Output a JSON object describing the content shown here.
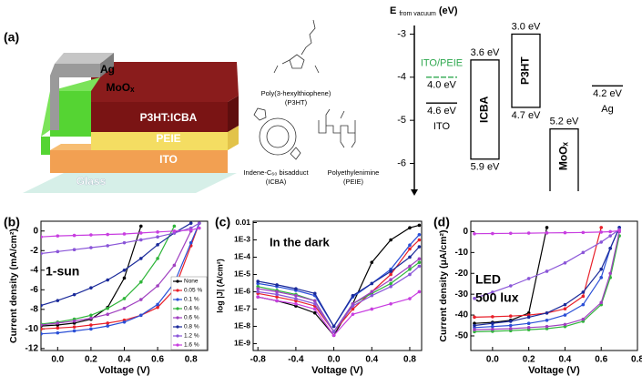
{
  "panel_a": {
    "label": "(a)",
    "layers": [
      "Ag",
      "MoOₓ",
      "P3HT:ICBA",
      "PEIE",
      "ITO",
      "Glass"
    ],
    "molecules": [
      {
        "name": "Poly(3-hexylthiophene)",
        "abbr": "(P3HT)"
      },
      {
        "name": "Indene-C₆₀ bisadduct",
        "abbr": "(ICBA)"
      },
      {
        "name": "Polyethylenimine",
        "abbr": "(PEIE)"
      }
    ]
  },
  "chart_data": [
    {
      "type": "energy",
      "ylabel": "E",
      "ylabel_sub": "from vacuum",
      "ylabel_unit": "(eV)",
      "ylim": [
        -6.75,
        -2.8
      ],
      "yticks": [
        -3,
        -4,
        -5,
        -6
      ],
      "levels": [
        {
          "name": "ITO/PEIE",
          "value": -4.0,
          "value_label": "4.0 eV",
          "color": "#2fa84f"
        },
        {
          "name": "ITO",
          "value": -4.6,
          "value_label": "4.6 eV",
          "color": "#000000"
        },
        {
          "name": "Ag",
          "value": -4.2,
          "value_label": "4.2 eV",
          "color": "#000000"
        }
      ],
      "boxes": [
        {
          "name": "ICBA",
          "top": -3.6,
          "bottom": -5.9,
          "top_label": "3.6 eV",
          "bottom_label": "5.9 eV"
        },
        {
          "name": "P3HT",
          "top": -3.0,
          "bottom": -4.7,
          "top_label": "3.0 eV",
          "bottom_label": "4.7 eV"
        },
        {
          "name": "MoOₓ",
          "top": -5.2,
          "top_label": "5.2 eV"
        }
      ]
    },
    {
      "type": "line",
      "label": "(b)",
      "xlabel": "Voltage (V)",
      "ylabel": "Current density (mA/cm²)",
      "annotation": [
        "1-sun"
      ],
      "xlim": [
        -0.1,
        0.9
      ],
      "ylim": [
        -12.2,
        1
      ],
      "xticks": [
        {
          "value": 0,
          "label": "0.0"
        },
        0.2,
        0.4,
        0.6,
        0.8
      ],
      "yticks": [
        0,
        -2,
        -4,
        -6,
        -8,
        -10,
        -12
      ],
      "x": [
        -0.1,
        0,
        0.1,
        0.2,
        0.3,
        0.4,
        0.5,
        0.6,
        0.7,
        0.8,
        0.85,
        0.9
      ],
      "series": [
        {
          "name": "None",
          "color": "#000000",
          "values": [
            -9.7,
            -9.6,
            -9.4,
            -9.0,
            -7.8,
            -4.8,
            0.5,
            null,
            null,
            null,
            null,
            null
          ]
        },
        {
          "name": "0.05 %",
          "color": "#e8202a",
          "values": [
            -10,
            -9.9,
            -9.8,
            -9.6,
            -9.4,
            -9.1,
            -8.6,
            -7.8,
            -6.0,
            -1.5,
            0.8,
            null
          ]
        },
        {
          "name": "0.1 %",
          "color": "#2a4fd6",
          "values": [
            -10.5,
            -10.4,
            -10.2,
            -10.0,
            -9.7,
            -9.3,
            -8.6,
            -7.5,
            -5.3,
            -1.2,
            0.8,
            null
          ]
        },
        {
          "name": "0.4 %",
          "color": "#2fb53a",
          "values": [
            -9.5,
            -9.3,
            -9.0,
            -8.6,
            -7.9,
            -6.9,
            -5.2,
            -2.8,
            0.5,
            null,
            null,
            null
          ]
        },
        {
          "name": "0.6 %",
          "color": "#a040c0",
          "values": [
            -9.6,
            -9.4,
            -9.2,
            -8.9,
            -8.5,
            -7.9,
            -7.0,
            -5.6,
            -3.5,
            0.0,
            null,
            null
          ]
        },
        {
          "name": "0.8 %",
          "color": "#1a2a9a",
          "values": [
            -7.6,
            -7.1,
            -6.5,
            -5.8,
            -5.0,
            -4.0,
            -2.8,
            -1.4,
            -0.2,
            0.8,
            null,
            null
          ]
        },
        {
          "name": "1.2 %",
          "color": "#8a55d8",
          "values": [
            -2.3,
            -2.1,
            -1.9,
            -1.7,
            -1.5,
            -1.2,
            -0.9,
            -0.6,
            -0.2,
            0.3,
            0.8,
            null
          ]
        },
        {
          "name": "1.6 %",
          "color": "#c83ee0",
          "values": [
            -0.6,
            -0.5,
            -0.45,
            -0.4,
            -0.35,
            -0.3,
            -0.2,
            -0.1,
            0,
            0.1,
            0.3,
            null
          ]
        }
      ]
    },
    {
      "type": "line",
      "label": "(c)",
      "xlabel": "Voltage (V)",
      "ylabel": "log |J| (A/cm²)",
      "annotation": [
        "In the dark"
      ],
      "log_y": true,
      "xlim": [
        -0.85,
        0.925
      ],
      "ylim": [
        4e-10,
        0.012
      ],
      "xticks": [
        -0.8,
        -0.4,
        {
          "value": 0,
          "label": "0.0"
        },
        0.4,
        0.8
      ],
      "yticks": [
        {
          "value": 1e-09,
          "label": "1E-9"
        },
        {
          "value": 1e-08,
          "label": "1E-8"
        },
        {
          "value": 1e-07,
          "label": "1E-7"
        },
        {
          "value": 1e-06,
          "label": "1E-6"
        },
        {
          "value": 1e-05,
          "label": "1E-5"
        },
        {
          "value": 0.0001,
          "label": "1E-4"
        },
        {
          "value": 0.001,
          "label": "1E-3"
        },
        0.01
      ],
      "x": [
        -0.8,
        -0.6,
        -0.4,
        -0.2,
        0,
        0.2,
        0.4,
        0.6,
        0.8,
        0.9
      ],
      "series": [
        {
          "color": "#000000",
          "values": [
            5e-07,
            3e-07,
            1.5e-07,
            6e-08,
            3e-09,
            2e-07,
            5e-05,
            0.001,
            0.005,
            0.007
          ]
        },
        {
          "color": "#e8202a",
          "values": [
            8e-07,
            5e-07,
            3e-07,
            1.5e-07,
            5e-09,
            1e-07,
            1e-06,
            1e-05,
            0.0003,
            0.001
          ]
        },
        {
          "color": "#2a4fd6",
          "values": [
            3e-06,
            2e-06,
            1.2e-06,
            6e-07,
            1e-08,
            5e-07,
            3e-06,
            2e-05,
            0.0005,
            0.002
          ]
        },
        {
          "color": "#2fb53a",
          "values": [
            2e-06,
            1.2e-06,
            7e-07,
            3e-07,
            5e-09,
            2e-07,
            8e-07,
            3e-06,
            2e-05,
            5e-05
          ]
        },
        {
          "color": "#a040c0",
          "values": [
            1.5e-06,
            1e-06,
            6e-07,
            3e-07,
            5e-09,
            2e-07,
            1e-06,
            5e-06,
            3e-05,
            8e-05
          ]
        },
        {
          "color": "#1a2a9a",
          "values": [
            4e-06,
            2.5e-06,
            1.5e-06,
            8e-07,
            1e-08,
            6e-07,
            3e-06,
            1.5e-05,
            0.0001,
            0.0004
          ]
        },
        {
          "color": "#8a55d8",
          "values": [
            1e-06,
            7e-07,
            4e-07,
            2e-07,
            5e-09,
            1.5e-07,
            6e-07,
            2e-06,
            1e-05,
            3e-05
          ]
        },
        {
          "color": "#c83ee0",
          "values": [
            5e-07,
            3e-07,
            2e-07,
            1e-07,
            3e-09,
            5e-08,
            1e-07,
            2e-07,
            4e-07,
            1e-06
          ]
        }
      ]
    },
    {
      "type": "line",
      "label": "(d)",
      "xlabel": "Voltage (V)",
      "ylabel": "Current density (μA/cm²)",
      "annotation": [
        "LED",
        "500 lux"
      ],
      "xlim": [
        -0.12,
        0.8
      ],
      "ylim": [
        -57,
        5
      ],
      "xticks": [
        {
          "value": 0,
          "label": "0.0"
        },
        0.2,
        0.4,
        0.6,
        0.8
      ],
      "yticks": [
        0,
        -10,
        -20,
        -30,
        -40,
        -50
      ],
      "x": [
        -0.1,
        0,
        0.1,
        0.2,
        0.3,
        0.4,
        0.5,
        0.6,
        0.65,
        0.7,
        0.75
      ],
      "series": [
        {
          "color": "#000000",
          "values": [
            -44,
            -43.5,
            -42.5,
            -39,
            2,
            null,
            null,
            null,
            null,
            null,
            null
          ]
        },
        {
          "color": "#e8202a",
          "values": [
            -41,
            -40.8,
            -40.5,
            -40,
            -39,
            -37,
            -31,
            2,
            null,
            null,
            null
          ]
        },
        {
          "color": "#2a4fd6",
          "values": [
            -46,
            -45.5,
            -45,
            -44,
            -42.5,
            -40,
            -35,
            -22,
            -8,
            2,
            null
          ]
        },
        {
          "color": "#2fb53a",
          "values": [
            -48,
            -47.8,
            -47.5,
            -47,
            -46.5,
            -45.5,
            -43,
            -35,
            -22,
            -2,
            null
          ]
        },
        {
          "color": "#a040c0",
          "values": [
            -47,
            -46.8,
            -46.5,
            -46,
            -45.5,
            -44.5,
            -42,
            -34,
            -20,
            0,
            null
          ]
        },
        {
          "color": "#1a2a9a",
          "values": [
            -45,
            -44,
            -43,
            -41,
            -39,
            -35,
            -29,
            -18,
            -8,
            2,
            null
          ]
        },
        {
          "color": "#8a55d8",
          "values": [
            -32,
            -29,
            -26,
            -22.5,
            -19,
            -15,
            -10,
            -5,
            -2,
            1,
            null
          ]
        },
        {
          "color": "#c83ee0",
          "values": [
            -1,
            -0.9,
            -0.8,
            -0.7,
            -0.6,
            -0.5,
            -0.4,
            -0.2,
            0,
            0.5,
            null
          ]
        }
      ]
    }
  ]
}
